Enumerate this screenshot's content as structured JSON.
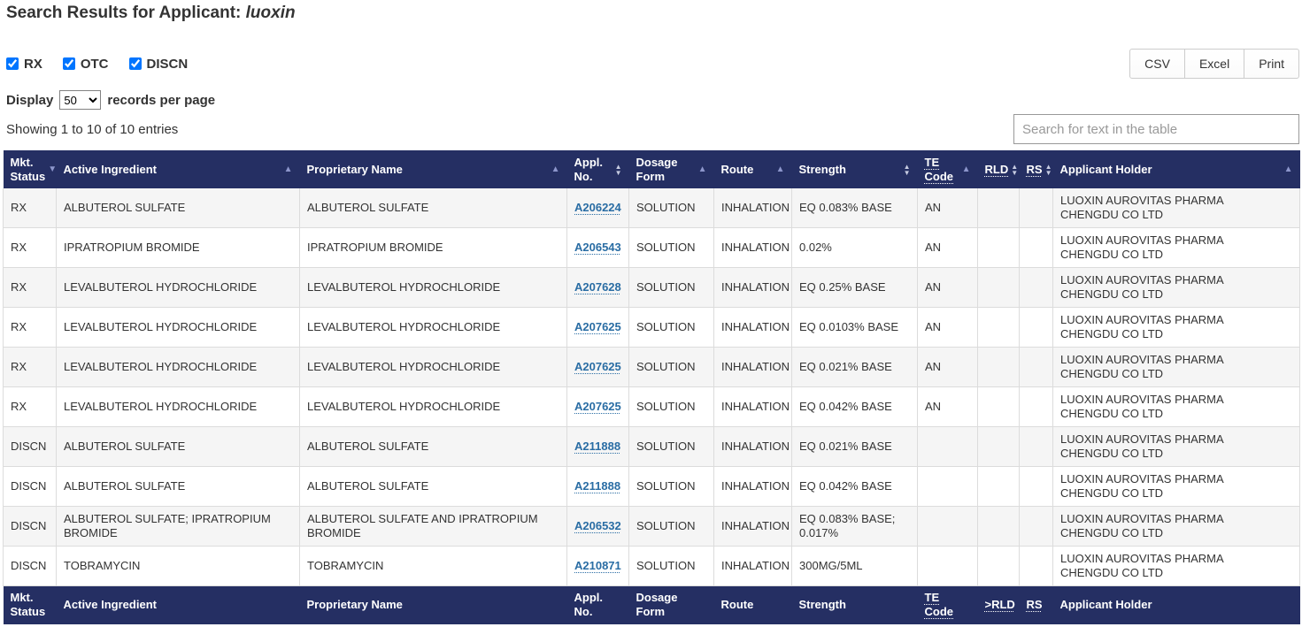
{
  "page": {
    "title_prefix": "Search Results for Applicant: ",
    "title_query": "luoxin"
  },
  "filters": {
    "checkboxes": [
      {
        "label": "RX",
        "checked": true
      },
      {
        "label": "OTC",
        "checked": true
      },
      {
        "label": "DISCN",
        "checked": true
      }
    ]
  },
  "export_buttons": {
    "csv": "CSV",
    "excel": "Excel",
    "print": "Print"
  },
  "pagination": {
    "display_label": "Display",
    "records_per_page_value": "50",
    "records_suffix": "records per page",
    "showing_text": "Showing 1 to 10 of 10 entries"
  },
  "search": {
    "placeholder": "Search for text in the table"
  },
  "table": {
    "header": [
      {
        "label": "Mkt. Status",
        "sort": "desc",
        "abbr": false
      },
      {
        "label": "Active Ingredient",
        "sort": "asc",
        "abbr": false
      },
      {
        "label": "Proprietary Name",
        "sort": "asc",
        "abbr": false
      },
      {
        "label": "Appl. No.",
        "sort": "both",
        "abbr": false
      },
      {
        "label": "Dosage Form",
        "sort": "asc",
        "abbr": false
      },
      {
        "label": "Route",
        "sort": "asc",
        "abbr": false
      },
      {
        "label": "Strength",
        "sort": "both",
        "abbr": false
      },
      {
        "label": "TE Code",
        "sort": "asc",
        "abbr": true
      },
      {
        "label": "RLD",
        "sort": "both",
        "abbr": true
      },
      {
        "label": "RS",
        "sort": "both",
        "abbr": true
      },
      {
        "label": "Applicant Holder",
        "sort": "asc",
        "abbr": false
      }
    ],
    "footer": [
      {
        "label": "Mkt. Status",
        "abbr": false
      },
      {
        "label": "Active Ingredient",
        "abbr": false
      },
      {
        "label": "Proprietary Name",
        "abbr": false
      },
      {
        "label": "Appl. No.",
        "abbr": false
      },
      {
        "label": "Dosage Form",
        "abbr": false
      },
      {
        "label": "Route",
        "abbr": false
      },
      {
        "label": "Strength",
        "abbr": false
      },
      {
        "label": "TE Code",
        "abbr": true
      },
      {
        "label": ">RLD",
        "abbr": true
      },
      {
        "label": "RS",
        "abbr": true
      },
      {
        "label": "Applicant Holder",
        "abbr": false
      }
    ],
    "rows": [
      {
        "mkt_status": "RX",
        "active_ingredient": "ALBUTEROL SULFATE",
        "proprietary_name": "ALBUTEROL SULFATE",
        "appl_no": "A206224",
        "dosage_form": "SOLUTION",
        "route": "INHALATION",
        "strength": "EQ 0.083% BASE",
        "te_code": "AN",
        "rld": "",
        "rs": "",
        "applicant_holder": "LUOXIN AUROVITAS PHARMA CHENGDU CO LTD"
      },
      {
        "mkt_status": "RX",
        "active_ingredient": "IPRATROPIUM BROMIDE",
        "proprietary_name": "IPRATROPIUM BROMIDE",
        "appl_no": "A206543",
        "dosage_form": "SOLUTION",
        "route": "INHALATION",
        "strength": "0.02%",
        "te_code": "AN",
        "rld": "",
        "rs": "",
        "applicant_holder": "LUOXIN AUROVITAS PHARMA CHENGDU CO LTD"
      },
      {
        "mkt_status": "RX",
        "active_ingredient": "LEVALBUTEROL HYDROCHLORIDE",
        "proprietary_name": "LEVALBUTEROL HYDROCHLORIDE",
        "appl_no": "A207628",
        "dosage_form": "SOLUTION",
        "route": "INHALATION",
        "strength": "EQ 0.25% BASE",
        "te_code": "AN",
        "rld": "",
        "rs": "",
        "applicant_holder": "LUOXIN AUROVITAS PHARMA CHENGDU CO LTD"
      },
      {
        "mkt_status": "RX",
        "active_ingredient": "LEVALBUTEROL HYDROCHLORIDE",
        "proprietary_name": "LEVALBUTEROL HYDROCHLORIDE",
        "appl_no": "A207625",
        "dosage_form": "SOLUTION",
        "route": "INHALATION",
        "strength": "EQ 0.0103% BASE",
        "te_code": "AN",
        "rld": "",
        "rs": "",
        "applicant_holder": "LUOXIN AUROVITAS PHARMA CHENGDU CO LTD"
      },
      {
        "mkt_status": "RX",
        "active_ingredient": "LEVALBUTEROL HYDROCHLORIDE",
        "proprietary_name": "LEVALBUTEROL HYDROCHLORIDE",
        "appl_no": "A207625",
        "dosage_form": "SOLUTION",
        "route": "INHALATION",
        "strength": "EQ 0.021% BASE",
        "te_code": "AN",
        "rld": "",
        "rs": "",
        "applicant_holder": "LUOXIN AUROVITAS PHARMA CHENGDU CO LTD"
      },
      {
        "mkt_status": "RX",
        "active_ingredient": "LEVALBUTEROL HYDROCHLORIDE",
        "proprietary_name": "LEVALBUTEROL HYDROCHLORIDE",
        "appl_no": "A207625",
        "dosage_form": "SOLUTION",
        "route": "INHALATION",
        "strength": "EQ 0.042% BASE",
        "te_code": "AN",
        "rld": "",
        "rs": "",
        "applicant_holder": "LUOXIN AUROVITAS PHARMA CHENGDU CO LTD"
      },
      {
        "mkt_status": "DISCN",
        "active_ingredient": "ALBUTEROL SULFATE",
        "proprietary_name": "ALBUTEROL SULFATE",
        "appl_no": "A211888",
        "dosage_form": "SOLUTION",
        "route": "INHALATION",
        "strength": "EQ 0.021% BASE",
        "te_code": "",
        "rld": "",
        "rs": "",
        "applicant_holder": "LUOXIN AUROVITAS PHARMA CHENGDU CO LTD"
      },
      {
        "mkt_status": "DISCN",
        "active_ingredient": "ALBUTEROL SULFATE",
        "proprietary_name": "ALBUTEROL SULFATE",
        "appl_no": "A211888",
        "dosage_form": "SOLUTION",
        "route": "INHALATION",
        "strength": "EQ 0.042% BASE",
        "te_code": "",
        "rld": "",
        "rs": "",
        "applicant_holder": "LUOXIN AUROVITAS PHARMA CHENGDU CO LTD"
      },
      {
        "mkt_status": "DISCN",
        "active_ingredient": "ALBUTEROL SULFATE; IPRATROPIUM BROMIDE",
        "proprietary_name": "ALBUTEROL SULFATE AND IPRATROPIUM BROMIDE",
        "appl_no": "A206532",
        "dosage_form": "SOLUTION",
        "route": "INHALATION",
        "strength": "EQ 0.083% BASE; 0.017%",
        "te_code": "",
        "rld": "",
        "rs": "",
        "applicant_holder": "LUOXIN AUROVITAS PHARMA CHENGDU CO LTD"
      },
      {
        "mkt_status": "DISCN",
        "active_ingredient": "TOBRAMYCIN",
        "proprietary_name": "TOBRAMYCIN",
        "appl_no": "A210871",
        "dosage_form": "SOLUTION",
        "route": "INHALATION",
        "strength": "300MG/5ML",
        "te_code": "",
        "rld": "",
        "rs": "",
        "applicant_holder": "LUOXIN AUROVITAS PHARMA CHENGDU CO LTD"
      }
    ]
  },
  "colors": {
    "header_bg": "#252f63",
    "link": "#2a6da4",
    "stripe": "#f5f5f5",
    "border": "#dcdcdc",
    "sort_arrow_active": "#8d96cc",
    "sort_arrow_inactive": "#c7cce2"
  }
}
